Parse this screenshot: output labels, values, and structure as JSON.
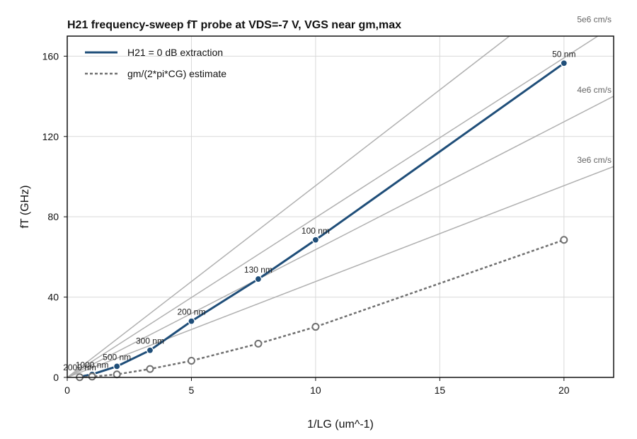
{
  "chart_data": {
    "type": "line",
    "title": "H21 frequency-sweep fT probe at VDS=-7 V, VGS near gm,max",
    "xlabel": "1/LG (um^-1)",
    "ylabel": "fT (GHz)",
    "xlim": [
      0,
      22
    ],
    "ylim": [
      0,
      170
    ],
    "x_ticks": [
      0,
      5,
      10,
      15,
      20
    ],
    "y_ticks": [
      0,
      40,
      80,
      120,
      160
    ],
    "grid": true,
    "legend_position": "top-left",
    "series": [
      {
        "name": "H21 = 0 dB extraction",
        "style": "solid",
        "color": "#1f4e79",
        "marker": "filled-circle",
        "x": [
          0.5,
          1.0,
          2.0,
          3.333,
          5.0,
          7.692,
          10.0,
          20.0
        ],
        "y": [
          0.3,
          1.5,
          5.5,
          13.5,
          28.0,
          49.0,
          68.5,
          156.5
        ],
        "point_labels": [
          "2000 nm",
          "1000 nm",
          "500 nm",
          "300 nm",
          "200 nm",
          "130 nm",
          "100 nm",
          "50 nm"
        ]
      },
      {
        "name": "gm/(2*pi*CG) estimate",
        "style": "dashed",
        "color": "#707070",
        "marker": "open-circle",
        "x": [
          0.5,
          1.0,
          2.0,
          3.333,
          5.0,
          7.692,
          10.0,
          20.0
        ],
        "y": [
          0.1,
          0.4,
          1.5,
          4.2,
          8.3,
          16.8,
          25.2,
          68.5
        ],
        "point_labels": []
      }
    ],
    "reference_lines": [
      {
        "label": "3e6 cm/s",
        "slope": 4.775
      },
      {
        "label": "4e6 cm/s",
        "slope": 6.366
      },
      {
        "label": "5e6 cm/s",
        "slope": 7.958
      },
      {
        "label": "",
        "slope": 9.549
      }
    ]
  }
}
